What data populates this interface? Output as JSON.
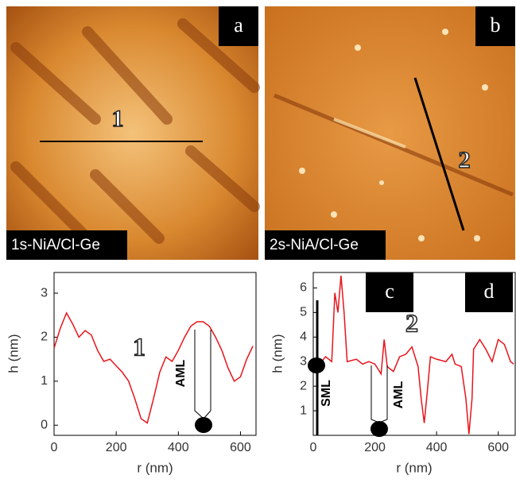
{
  "panels": [
    {
      "label": "a",
      "caption": "1s-NiA/Cl-Ge",
      "line_label": "1"
    },
    {
      "label": "b",
      "caption": "2s-NiA/Cl-Ge",
      "line_label": "2"
    }
  ],
  "chart_data": [
    {
      "type": "line",
      "panel_label": "c",
      "x_label": "r (nm)",
      "y_label": "h (nm)",
      "xlim": [
        0,
        650
      ],
      "ylim": [
        -0.23,
        3.47
      ],
      "xticks": [
        0,
        200,
        400,
        600
      ],
      "yticks": [
        0,
        1,
        2,
        3
      ],
      "x": [
        0,
        20,
        40,
        60,
        80,
        100,
        120,
        140,
        160,
        180,
        200,
        220,
        240,
        260,
        280,
        300,
        320,
        340,
        360,
        380,
        400,
        420,
        440,
        460,
        480,
        500,
        520,
        540,
        560,
        580,
        600,
        620,
        640
      ],
      "series": [
        {
          "name": "1",
          "color": "#e8141c",
          "values": [
            1.75,
            2.2,
            2.55,
            2.3,
            2.0,
            2.15,
            2.05,
            1.7,
            1.45,
            1.5,
            1.35,
            1.2,
            1.0,
            0.6,
            0.15,
            0.05,
            0.6,
            1.2,
            1.55,
            1.45,
            1.7,
            2.0,
            2.25,
            2.35,
            2.35,
            2.25,
            2.0,
            1.7,
            1.3,
            1.0,
            1.1,
            1.5,
            1.8
          ]
        }
      ],
      "annotations": [
        "1",
        "AML"
      ]
    },
    {
      "type": "line",
      "panel_label": "d",
      "x_label": "r (nm)",
      "y_label": "h (nm)",
      "xlim": [
        0,
        655
      ],
      "ylim": [
        0,
        6.63
      ],
      "xticks": [
        0,
        200,
        400,
        600
      ],
      "yticks": [
        1,
        2,
        3,
        4,
        5,
        6
      ],
      "x": [
        0,
        20,
        40,
        60,
        70,
        80,
        90,
        100,
        110,
        140,
        160,
        180,
        200,
        220,
        230,
        240,
        260,
        280,
        300,
        320,
        340,
        350,
        360,
        370,
        380,
        400,
        430,
        450,
        460,
        480,
        495,
        505,
        515,
        520,
        540,
        560,
        580,
        600,
        620,
        640,
        650
      ],
      "series": [
        {
          "name": "2",
          "color": "#e8141c",
          "values": [
            3.1,
            2.9,
            3.2,
            3.0,
            5.8,
            5.0,
            6.5,
            5.0,
            3.0,
            3.1,
            2.9,
            3.0,
            2.9,
            2.5,
            3.9,
            2.8,
            2.6,
            3.2,
            3.3,
            3.6,
            2.8,
            1.5,
            0.5,
            1.8,
            3.2,
            3.1,
            3.0,
            3.3,
            2.9,
            2.8,
            1.5,
            0.05,
            1.5,
            3.5,
            3.9,
            3.5,
            3.0,
            3.9,
            3.7,
            3.0,
            2.9
          ]
        }
      ],
      "annotations": [
        "2",
        "SML",
        "AML"
      ]
    }
  ]
}
